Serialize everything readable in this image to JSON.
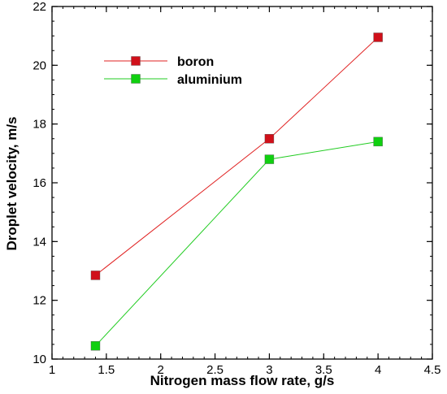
{
  "chart_data": {
    "type": "line",
    "title": "",
    "xlabel": "Nitrogen mass flow rate, g/s",
    "ylabel": "Droplet velocity, m/s",
    "xlim": [
      1,
      4.5
    ],
    "ylim": [
      10,
      22
    ],
    "xticks": [
      "1",
      "1.5",
      "2",
      "2.5",
      "3",
      "3.5",
      "4",
      "4.5"
    ],
    "yticks": [
      "10",
      "12",
      "14",
      "16",
      "18",
      "20",
      "22"
    ],
    "grid": false,
    "legend_position": "top-left",
    "x": [
      1.4,
      3,
      4
    ],
    "series": [
      {
        "name": "boron",
        "color": "#e02020",
        "marker_color": "#d0101a",
        "values": [
          12.85,
          17.5,
          20.95
        ]
      },
      {
        "name": "aluminium",
        "color": "#22cc22",
        "marker_color": "#10d010",
        "values": [
          10.45,
          16.8,
          17.4
        ]
      }
    ]
  }
}
